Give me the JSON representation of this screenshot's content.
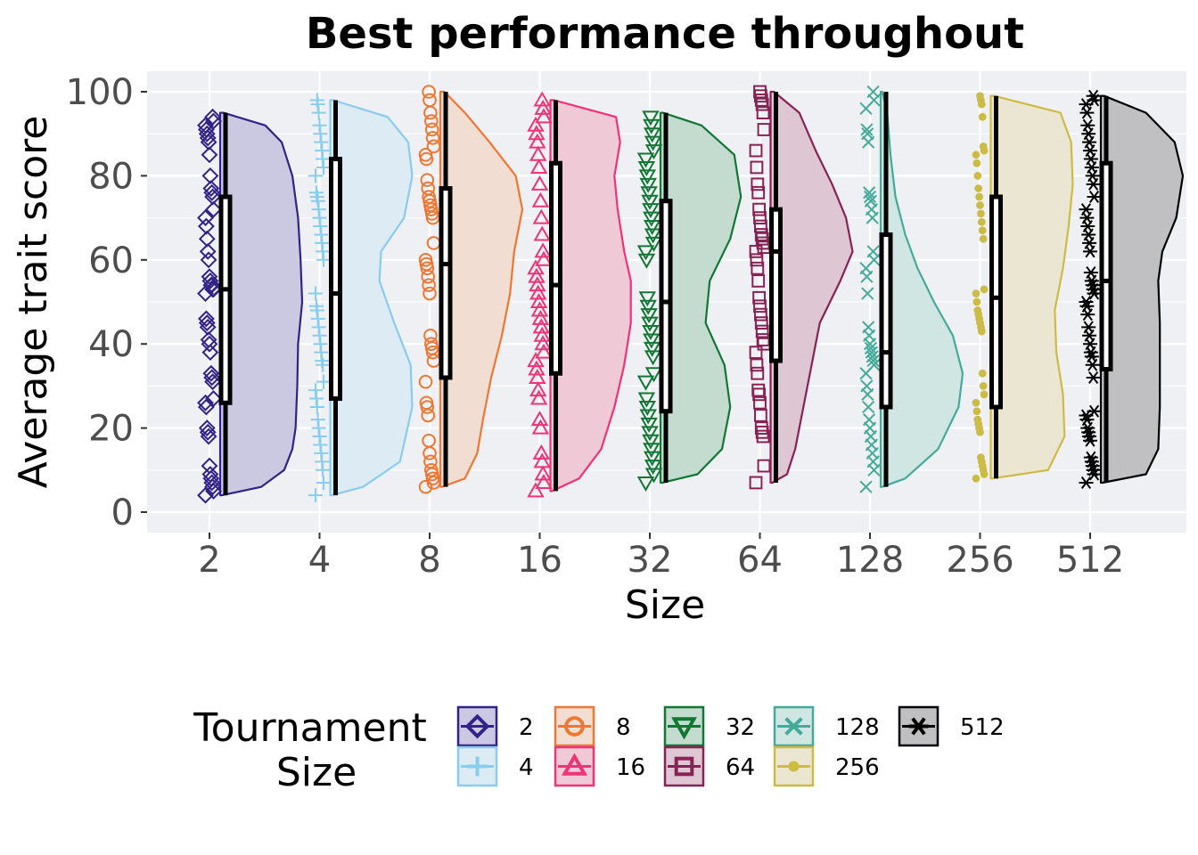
{
  "chart_data": {
    "type": "raincloud",
    "title": "Best performance throughout",
    "xlabel": "Size",
    "ylabel": "Average trait score",
    "ylim": [
      -4.5,
      104.5
    ],
    "yticks": [
      0,
      20,
      40,
      60,
      80,
      100
    ],
    "grid": true,
    "legend": {
      "title_lines": [
        "Tournament",
        "Size"
      ],
      "placement": "bottom"
    },
    "groups": [
      {
        "label": "2",
        "color": "#332288",
        "fill": "#cbc8e1",
        "marker": "diamond",
        "box": {
          "min": 4,
          "q1": 26,
          "median": 53,
          "q3": 75,
          "max": 95
        },
        "density": [
          [
            4,
            0.02
          ],
          [
            6,
            0.5
          ],
          [
            10,
            0.78
          ],
          [
            15,
            0.88
          ],
          [
            20,
            0.92
          ],
          [
            30,
            0.94
          ],
          [
            40,
            0.95
          ],
          [
            50,
            1.0
          ],
          [
            60,
            0.98
          ],
          [
            70,
            0.95
          ],
          [
            80,
            0.88
          ],
          [
            88,
            0.75
          ],
          [
            92,
            0.55
          ],
          [
            95,
            0.04
          ]
        ],
        "points": [
          4,
          5,
          6,
          7,
          8,
          9,
          11,
          18,
          19,
          20,
          25,
          26,
          27,
          31,
          32,
          33,
          38,
          40,
          41,
          44,
          45,
          46,
          52,
          53,
          53,
          54,
          54,
          55,
          56,
          60,
          62,
          65,
          68,
          70,
          72,
          75,
          76,
          77,
          80,
          85,
          88,
          89,
          90,
          91,
          92,
          93,
          94
        ]
      },
      {
        "label": "4",
        "color": "#88ccee",
        "fill": "#dcebf4",
        "marker": "plus",
        "box": {
          "min": 4,
          "q1": 27,
          "median": 52,
          "q3": 84,
          "max": 98
        },
        "density": [
          [
            4,
            0.02
          ],
          [
            6,
            0.4
          ],
          [
            12,
            0.85
          ],
          [
            25,
            1.0
          ],
          [
            35,
            0.98
          ],
          [
            45,
            0.78
          ],
          [
            55,
            0.6
          ],
          [
            62,
            0.62
          ],
          [
            70,
            0.9
          ],
          [
            80,
            1.0
          ],
          [
            88,
            0.95
          ],
          [
            94,
            0.7
          ],
          [
            98,
            0.03
          ]
        ],
        "points": [
          4,
          7,
          10,
          12,
          14,
          16,
          18,
          20,
          22,
          25,
          27,
          29,
          31,
          35,
          36,
          38,
          40,
          42,
          44,
          46,
          48,
          49,
          52,
          60,
          62,
          64,
          66,
          68,
          70,
          72,
          74,
          75,
          76,
          80,
          82,
          84,
          86,
          88,
          90,
          92,
          95,
          97,
          98
        ]
      },
      {
        "label": "8",
        "color": "#ee7733",
        "fill": "#f2ddd2",
        "marker": "circle",
        "box": {
          "min": 6,
          "q1": 32,
          "median": 59,
          "q3": 77,
          "max": 100
        },
        "density": [
          [
            6,
            0.02
          ],
          [
            8,
            0.3
          ],
          [
            14,
            0.45
          ],
          [
            22,
            0.52
          ],
          [
            32,
            0.62
          ],
          [
            42,
            0.75
          ],
          [
            52,
            0.85
          ],
          [
            62,
            0.9
          ],
          [
            72,
            1.0
          ],
          [
            80,
            0.92
          ],
          [
            88,
            0.6
          ],
          [
            95,
            0.3
          ],
          [
            100,
            0.05
          ]
        ],
        "points": [
          6,
          7,
          8,
          9,
          10,
          12,
          14,
          17,
          23,
          25,
          26,
          31,
          36,
          38,
          39,
          40,
          42,
          52,
          54,
          56,
          58,
          59,
          60,
          64,
          70,
          71,
          72,
          73,
          74,
          75,
          77,
          79,
          84,
          85,
          87,
          89,
          91,
          93,
          95,
          98,
          100
        ]
      },
      {
        "label": "16",
        "color": "#ee3377",
        "fill": "#f0c9d6",
        "marker": "triangle",
        "box": {
          "min": 5,
          "q1": 33,
          "median": 54,
          "q3": 83,
          "max": 98
        },
        "density": [
          [
            5,
            0.02
          ],
          [
            8,
            0.35
          ],
          [
            15,
            0.62
          ],
          [
            25,
            0.78
          ],
          [
            35,
            0.9
          ],
          [
            45,
            0.98
          ],
          [
            55,
            0.98
          ],
          [
            62,
            0.9
          ],
          [
            72,
            0.82
          ],
          [
            80,
            0.78
          ],
          [
            88,
            0.85
          ],
          [
            94,
            0.8
          ],
          [
            98,
            0.04
          ]
        ],
        "points": [
          5,
          7,
          9,
          12,
          14,
          20,
          22,
          27,
          29,
          32,
          34,
          36,
          38,
          40,
          42,
          44,
          46,
          48,
          50,
          52,
          54,
          56,
          58,
          60,
          62,
          66,
          70,
          74,
          78,
          82,
          85,
          88,
          90,
          92,
          94,
          96,
          98
        ]
      },
      {
        "label": "32",
        "color": "#117733",
        "fill": "#c3dccf",
        "marker": "triangle-down",
        "box": {
          "min": 7,
          "q1": 24,
          "median": 50,
          "q3": 74,
          "max": 95
        },
        "density": [
          [
            7,
            0.02
          ],
          [
            9,
            0.45
          ],
          [
            15,
            0.75
          ],
          [
            25,
            0.85
          ],
          [
            35,
            0.78
          ],
          [
            45,
            0.55
          ],
          [
            55,
            0.6
          ],
          [
            65,
            0.85
          ],
          [
            75,
            0.98
          ],
          [
            85,
            0.9
          ],
          [
            92,
            0.5
          ],
          [
            95,
            0.03
          ]
        ],
        "points": [
          7,
          9,
          11,
          13,
          15,
          17,
          19,
          21,
          23,
          25,
          27,
          31,
          33,
          37,
          39,
          41,
          43,
          45,
          47,
          49,
          51,
          60,
          62,
          64,
          66,
          68,
          70,
          72,
          74,
          76,
          78,
          80,
          82,
          84,
          86,
          88,
          90,
          92,
          94
        ]
      },
      {
        "label": "64",
        "color": "#882255",
        "fill": "#dfc6d3",
        "marker": "square",
        "box": {
          "min": 7,
          "q1": 36,
          "median": 62,
          "q3": 72,
          "max": 100
        },
        "density": [
          [
            7,
            0.02
          ],
          [
            9,
            0.2
          ],
          [
            15,
            0.3
          ],
          [
            25,
            0.4
          ],
          [
            35,
            0.5
          ],
          [
            45,
            0.6
          ],
          [
            55,
            0.85
          ],
          [
            62,
            1.0
          ],
          [
            70,
            0.92
          ],
          [
            78,
            0.75
          ],
          [
            86,
            0.55
          ],
          [
            95,
            0.35
          ],
          [
            100,
            0.04
          ]
        ],
        "points": [
          7,
          11,
          18,
          19,
          20,
          23,
          26,
          28,
          29,
          33,
          35,
          38,
          40,
          41,
          43,
          45,
          47,
          49,
          51,
          55,
          58,
          60,
          62,
          63,
          64,
          65,
          66,
          68,
          70,
          72,
          76,
          78,
          82,
          86,
          91,
          95,
          97,
          98,
          99,
          100
        ]
      },
      {
        "label": "128",
        "color": "#44aa99",
        "fill": "#cfe6e2",
        "marker": "x",
        "box": {
          "min": 6,
          "q1": 25,
          "median": 38,
          "q3": 66,
          "max": 100
        },
        "density": [
          [
            6,
            0.02
          ],
          [
            8,
            0.3
          ],
          [
            15,
            0.7
          ],
          [
            25,
            0.95
          ],
          [
            33,
            1.0
          ],
          [
            42,
            0.88
          ],
          [
            50,
            0.65
          ],
          [
            58,
            0.45
          ],
          [
            66,
            0.3
          ],
          [
            75,
            0.18
          ],
          [
            85,
            0.12
          ],
          [
            95,
            0.08
          ],
          [
            100,
            0.02
          ]
        ],
        "points": [
          6,
          10,
          12,
          14,
          16,
          18,
          20,
          22,
          25,
          28,
          30,
          33,
          35,
          36,
          37,
          38,
          39,
          40,
          42,
          44,
          52,
          56,
          58,
          60,
          62,
          70,
          72,
          74,
          75,
          76,
          88,
          90,
          91,
          96,
          98,
          100
        ]
      },
      {
        "label": "256",
        "color": "#ccbb44",
        "fill": "#eae6d2",
        "marker": "dot",
        "box": {
          "min": 8,
          "q1": 25,
          "median": 51,
          "q3": 75,
          "max": 99
        },
        "density": [
          [
            8,
            0.02
          ],
          [
            10,
            0.7
          ],
          [
            18,
            0.9
          ],
          [
            28,
            0.88
          ],
          [
            38,
            0.8
          ],
          [
            48,
            0.78
          ],
          [
            58,
            0.88
          ],
          [
            68,
            0.95
          ],
          [
            78,
            1.0
          ],
          [
            88,
            0.98
          ],
          [
            95,
            0.85
          ],
          [
            99,
            0.04
          ]
        ],
        "points": [
          8,
          9,
          10,
          11,
          12,
          13,
          19,
          20,
          21,
          22,
          24,
          26,
          28,
          30,
          33,
          43,
          44,
          45,
          46,
          47,
          48,
          50,
          52,
          53,
          65,
          67,
          69,
          71,
          73,
          75,
          77,
          80,
          83,
          85,
          86,
          87,
          94,
          97,
          98,
          99
        ]
      },
      {
        "label": "512",
        "color": "#000000",
        "fill": "#c0c0c2",
        "marker": "asterisk",
        "box": {
          "min": 7,
          "q1": 34,
          "median": 55,
          "q3": 83,
          "max": 99
        },
        "density": [
          [
            7,
            0.02
          ],
          [
            9,
            0.55
          ],
          [
            15,
            0.7
          ],
          [
            25,
            0.72
          ],
          [
            35,
            0.72
          ],
          [
            45,
            0.72
          ],
          [
            55,
            0.7
          ],
          [
            62,
            0.75
          ],
          [
            70,
            0.92
          ],
          [
            80,
            1.0
          ],
          [
            88,
            0.9
          ],
          [
            95,
            0.55
          ],
          [
            99,
            0.04
          ]
        ],
        "points": [
          7,
          9,
          10,
          11,
          12,
          13,
          17,
          18,
          19,
          20,
          22,
          23,
          24,
          32,
          35,
          37,
          38,
          40,
          42,
          44,
          47,
          49,
          50,
          52,
          53,
          54,
          55,
          57,
          62,
          64,
          66,
          68,
          70,
          72,
          75,
          78,
          80,
          82,
          84,
          86,
          88,
          90,
          92,
          95,
          97,
          98,
          99
        ]
      }
    ]
  }
}
